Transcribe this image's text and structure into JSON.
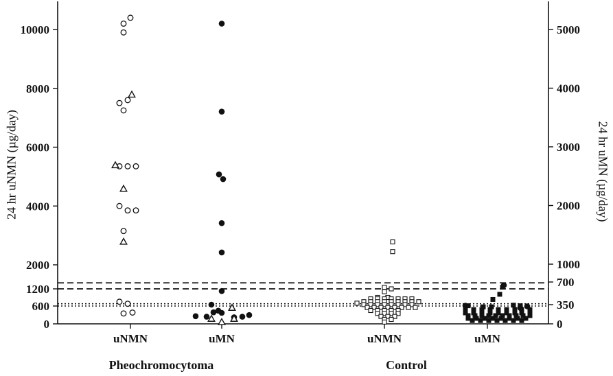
{
  "chart_data": {
    "type": "scatter",
    "ylabel_left": "24 hr uNMN (µg/day)",
    "ylabel_right": "24 hr uMN (µg/day)",
    "groups": [
      "Pheochromocytoma",
      "Control"
    ],
    "categories": [
      "uNMN",
      "uMN",
      "uNMN",
      "uMN"
    ],
    "left_axis": {
      "ticks": [
        0,
        600,
        1200,
        2000,
        4000,
        6000,
        8000,
        10000
      ]
    },
    "right_axis": {
      "ticks": [
        0,
        350,
        700,
        1000,
        2000,
        3000,
        4000,
        5000
      ]
    },
    "reference_lines": [
      {
        "style": "dashed",
        "value_left": 1400
      },
      {
        "style": "dashed",
        "value_left": 1200
      },
      {
        "style": "dotted",
        "value_left": 680
      },
      {
        "style": "dotted",
        "value_left": 600
      }
    ],
    "series": [
      {
        "category": "uNMN",
        "group": "Pheochromocytoma",
        "marker": "open-circle",
        "points": [
          [
            -10,
            10200
          ],
          [
            0,
            10400
          ],
          [
            -10,
            9900
          ],
          [
            -16,
            7500
          ],
          [
            -4,
            7600
          ],
          [
            -10,
            7250
          ],
          [
            -16,
            5350
          ],
          [
            -4,
            5350
          ],
          [
            8,
            5350
          ],
          [
            -16,
            4000
          ],
          [
            -4,
            3850
          ],
          [
            8,
            3850
          ],
          [
            -10,
            3150
          ],
          [
            -16,
            750
          ],
          [
            -4,
            680
          ],
          [
            -10,
            350
          ],
          [
            3,
            380
          ]
        ]
      },
      {
        "category": "uNMN",
        "group": "Pheochromocytoma",
        "marker": "open-triangle",
        "points": [
          [
            2,
            7800
          ],
          [
            -22,
            5400
          ],
          [
            -10,
            4600
          ],
          [
            -10,
            2800
          ]
        ]
      },
      {
        "category": "uMN",
        "group": "Pheochromocytoma",
        "marker": "filled-circle",
        "points": [
          [
            0,
            5100
          ],
          [
            0,
            3600
          ],
          [
            -4,
            2530
          ],
          [
            2,
            2450
          ],
          [
            0,
            1700
          ],
          [
            0,
            1200
          ],
          [
            0,
            560
          ],
          [
            -15,
            350
          ],
          [
            -12,
            210
          ],
          [
            -5,
            240
          ],
          [
            0,
            200
          ],
          [
            -22,
            130
          ],
          [
            -38,
            140
          ],
          [
            18,
            120
          ],
          [
            30,
            130
          ],
          [
            40,
            160
          ]
        ]
      },
      {
        "category": "uMN",
        "group": "Pheochromocytoma",
        "marker": "open-triangle",
        "points": [
          [
            -15,
            100
          ],
          [
            0,
            40
          ],
          [
            18,
            100
          ],
          [
            15,
            300
          ]
        ]
      },
      {
        "category": "uNMN",
        "group": "Control",
        "marker": "open-square",
        "points": [
          [
            12,
            2780
          ],
          [
            12,
            2450
          ],
          [
            0,
            1250
          ],
          [
            10,
            1200
          ],
          [
            0,
            1100
          ],
          [
            -10,
            900
          ],
          [
            5,
            900
          ],
          [
            -20,
            850
          ],
          [
            -10,
            850
          ],
          [
            0,
            850
          ],
          [
            10,
            850
          ],
          [
            20,
            850
          ],
          [
            30,
            850
          ],
          [
            40,
            850
          ],
          [
            -30,
            750
          ],
          [
            -20,
            750
          ],
          [
            -10,
            750
          ],
          [
            0,
            750
          ],
          [
            10,
            750
          ],
          [
            20,
            750
          ],
          [
            30,
            750
          ],
          [
            40,
            750
          ],
          [
            50,
            750
          ],
          [
            -40,
            700
          ],
          [
            -30,
            650
          ],
          [
            -20,
            650
          ],
          [
            -10,
            650
          ],
          [
            0,
            650
          ],
          [
            10,
            650
          ],
          [
            20,
            650
          ],
          [
            30,
            650
          ],
          [
            40,
            650
          ],
          [
            -25,
            550
          ],
          [
            -15,
            550
          ],
          [
            -5,
            550
          ],
          [
            5,
            550
          ],
          [
            15,
            550
          ],
          [
            25,
            550
          ],
          [
            35,
            550
          ],
          [
            45,
            550
          ],
          [
            -20,
            450
          ],
          [
            -10,
            450
          ],
          [
            0,
            450
          ],
          [
            10,
            450
          ],
          [
            20,
            450
          ],
          [
            -10,
            350
          ],
          [
            0,
            350
          ],
          [
            10,
            350
          ],
          [
            20,
            350
          ],
          [
            -5,
            250
          ],
          [
            5,
            250
          ],
          [
            15,
            250
          ],
          [
            0,
            150
          ],
          [
            10,
            150
          ],
          [
            0,
            60
          ]
        ]
      },
      {
        "category": "uMN",
        "group": "Control",
        "marker": "filled-square",
        "points": [
          [
            22,
            620
          ],
          [
            18,
            510
          ],
          [
            8,
            430
          ],
          [
            38,
            340
          ],
          [
            48,
            330
          ],
          [
            -28,
            330
          ],
          [
            -32,
            260
          ],
          [
            -20,
            260
          ],
          [
            -8,
            260
          ],
          [
            4,
            260
          ],
          [
            16,
            260
          ],
          [
            28,
            260
          ],
          [
            40,
            260
          ],
          [
            50,
            260
          ],
          [
            62,
            260
          ],
          [
            -32,
            200
          ],
          [
            -20,
            200
          ],
          [
            -8,
            200
          ],
          [
            4,
            200
          ],
          [
            16,
            200
          ],
          [
            28,
            200
          ],
          [
            40,
            200
          ],
          [
            50,
            200
          ],
          [
            62,
            200
          ],
          [
            -28,
            150
          ],
          [
            -18,
            150
          ],
          [
            -8,
            150
          ],
          [
            2,
            150
          ],
          [
            12,
            150
          ],
          [
            22,
            150
          ],
          [
            32,
            150
          ],
          [
            42,
            150
          ],
          [
            52,
            150
          ],
          [
            62,
            150
          ],
          [
            -28,
            100
          ],
          [
            -16,
            100
          ],
          [
            -4,
            100
          ],
          [
            8,
            100
          ],
          [
            20,
            100
          ],
          [
            32,
            100
          ],
          [
            44,
            100
          ],
          [
            56,
            100
          ],
          [
            -22,
            60
          ],
          [
            -10,
            60
          ],
          [
            2,
            60
          ],
          [
            14,
            60
          ],
          [
            26,
            60
          ],
          [
            38,
            60
          ],
          [
            50,
            60
          ],
          [
            -6,
            310
          ],
          [
            6,
            310
          ]
        ]
      },
      {
        "category": "uMN",
        "group": "Control",
        "marker": "filled-circle",
        "points": [
          [
            -32,
            330
          ],
          [
            24,
            650
          ],
          [
            48,
            290
          ],
          [
            58,
            320
          ]
        ]
      }
    ]
  },
  "labels": {
    "ylabel_left": "24 hr uNMN (µg/day)",
    "ylabel_right": "24 hr uMN (µg/day)",
    "group_pheo": "Pheochromocytoma",
    "group_control": "Control"
  }
}
